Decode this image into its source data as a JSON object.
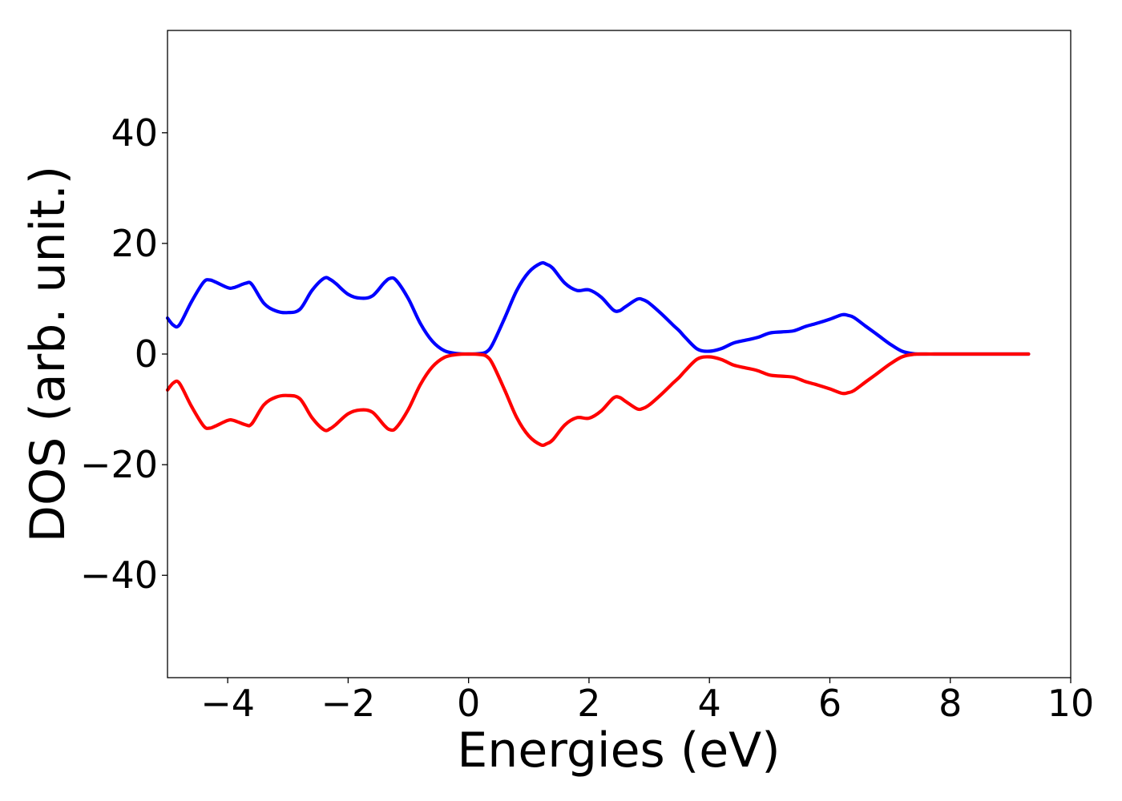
{
  "chart_data": {
    "type": "line",
    "title": "",
    "xlabel": "Energies (eV)",
    "ylabel": "DOS (arb. unit.)",
    "xlim": [
      -5,
      10
    ],
    "ylim": [
      -58.5,
      58.5
    ],
    "grid": false,
    "xticks": [
      -4,
      -2,
      0,
      2,
      4,
      6,
      8,
      10
    ],
    "yticks": [
      -40,
      -20,
      0,
      20,
      40
    ],
    "xtick_labels": [
      "−4",
      "−2",
      "0",
      "2",
      "4",
      "6",
      "8",
      "10"
    ],
    "ytick_labels": [
      "−40",
      "−20",
      "0",
      "20",
      "40"
    ],
    "x": [
      -5.0,
      -4.9,
      -4.8,
      -4.6,
      -4.4,
      -4.3,
      -4.2,
      -4.0,
      -3.9,
      -3.7,
      -3.6,
      -3.4,
      -3.2,
      -3.0,
      -2.8,
      -2.6,
      -2.4,
      -2.3,
      -2.2,
      -2.0,
      -1.8,
      -1.6,
      -1.4,
      -1.3,
      -1.2,
      -1.0,
      -0.8,
      -0.6,
      -0.4,
      -0.2,
      0.0,
      0.2,
      0.3,
      0.4,
      0.6,
      0.8,
      1.0,
      1.2,
      1.3,
      1.4,
      1.6,
      1.8,
      2.0,
      2.2,
      2.4,
      2.5,
      2.6,
      2.8,
      2.9,
      3.0,
      3.2,
      3.4,
      3.5,
      3.6,
      3.8,
      4.0,
      4.2,
      4.4,
      4.6,
      4.8,
      5.0,
      5.2,
      5.4,
      5.6,
      5.8,
      6.0,
      6.2,
      6.3,
      6.4,
      6.6,
      6.8,
      7.0,
      7.2,
      7.4,
      7.6,
      7.8,
      8.0,
      8.2,
      8.4,
      8.6,
      8.8,
      9.0,
      9.2,
      9.3
    ],
    "series": [
      {
        "color": "#0000ff",
        "y": [
          6.5,
          5.2,
          5.3,
          9.5,
          13.0,
          13.4,
          13.0,
          12.0,
          12.0,
          12.8,
          12.6,
          9.2,
          7.8,
          7.5,
          8.1,
          11.5,
          13.7,
          13.5,
          12.7,
          10.8,
          10.1,
          10.5,
          12.9,
          13.7,
          13.3,
          10.0,
          5.5,
          2.3,
          0.6,
          0.1,
          0.0,
          0.1,
          0.4,
          1.8,
          6.5,
          11.5,
          14.8,
          16.4,
          16.2,
          15.5,
          12.8,
          11.5,
          11.6,
          10.3,
          8.0,
          7.8,
          8.5,
          9.9,
          9.8,
          9.2,
          7.3,
          5.2,
          4.2,
          3.0,
          0.9,
          0.5,
          1.0,
          2.0,
          2.5,
          3.0,
          3.8,
          4.0,
          4.2,
          5.0,
          5.6,
          6.3,
          7.1,
          7.0,
          6.6,
          5.0,
          3.4,
          1.8,
          0.5,
          0.05,
          0.0,
          0.0,
          0.0,
          0.0,
          0.0,
          0.0,
          0.0,
          0.0,
          0.0,
          0.0
        ]
      },
      {
        "color": "#ff0000",
        "y": [
          -6.5,
          -5.2,
          -5.3,
          -9.5,
          -13.0,
          -13.4,
          -13.0,
          -12.0,
          -12.0,
          -12.8,
          -12.6,
          -9.2,
          -7.8,
          -7.5,
          -8.1,
          -11.5,
          -13.7,
          -13.5,
          -12.7,
          -10.8,
          -10.1,
          -10.5,
          -12.9,
          -13.7,
          -13.3,
          -10.0,
          -5.5,
          -2.3,
          -0.6,
          -0.1,
          0.0,
          -0.1,
          -0.4,
          -1.8,
          -6.5,
          -11.5,
          -14.8,
          -16.4,
          -16.2,
          -15.5,
          -12.8,
          -11.5,
          -11.6,
          -10.3,
          -8.0,
          -7.8,
          -8.5,
          -9.9,
          -9.8,
          -9.2,
          -7.3,
          -5.2,
          -4.2,
          -3.0,
          -0.9,
          -0.5,
          -1.0,
          -2.0,
          -2.5,
          -3.0,
          -3.8,
          -4.0,
          -4.2,
          -5.0,
          -5.6,
          -6.3,
          -7.1,
          -7.0,
          -6.6,
          -5.0,
          -3.4,
          -1.8,
          -0.5,
          -0.05,
          0.0,
          0.0,
          0.0,
          0.0,
          0.0,
          0.0,
          0.0,
          0.0,
          0.0,
          0.0
        ]
      }
    ]
  }
}
